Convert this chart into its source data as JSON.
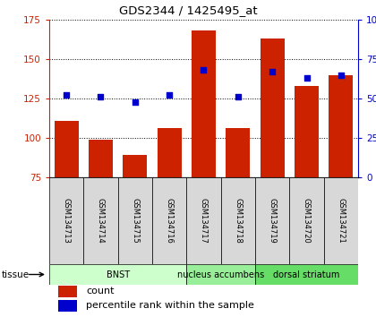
{
  "title": "GDS2344 / 1425495_at",
  "samples": [
    "GSM134713",
    "GSM134714",
    "GSM134715",
    "GSM134716",
    "GSM134717",
    "GSM134718",
    "GSM134719",
    "GSM134720",
    "GSM134721"
  ],
  "counts": [
    111,
    99,
    89,
    106,
    168,
    106,
    163,
    133,
    140
  ],
  "percentiles": [
    52,
    51,
    48,
    52,
    68,
    51,
    67,
    63,
    65
  ],
  "ylim_left": [
    75,
    175
  ],
  "ylim_right": [
    0,
    100
  ],
  "yticks_left": [
    75,
    100,
    125,
    150,
    175
  ],
  "yticks_right": [
    0,
    25,
    50,
    75,
    100
  ],
  "bar_color": "#cc2200",
  "dot_color": "#0000cc",
  "bar_bottom": 75,
  "tissue_groups": [
    {
      "start": 0,
      "end": 3,
      "label": "BNST",
      "color": "#ccffcc"
    },
    {
      "start": 4,
      "end": 5,
      "label": "nucleus accumbens",
      "color": "#99ee99"
    },
    {
      "start": 6,
      "end": 8,
      "label": "dorsal striatum",
      "color": "#66dd66"
    }
  ],
  "tissue_label": "tissue",
  "legend_count": "count",
  "legend_percentile": "percentile rank within the sample",
  "bg_color": "#ffffff",
  "sample_area_bg": "#d8d8d8",
  "chart_border_color": "#000000"
}
